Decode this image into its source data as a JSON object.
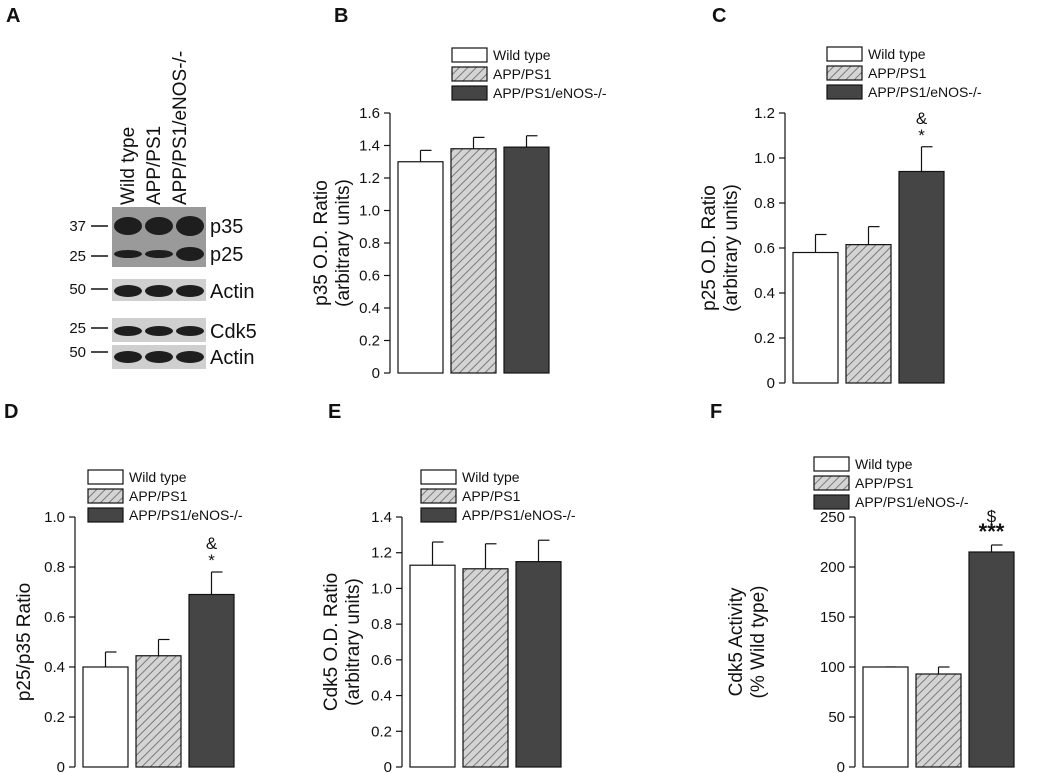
{
  "blot": {
    "panel_label": "A",
    "lanes": [
      "Wild type",
      "APP/PS1",
      "APP/PS1/eNOS-/-"
    ],
    "bands": [
      "p35",
      "p25",
      "Actin",
      "Cdk5",
      "Actin"
    ],
    "markers": [
      37,
      25,
      50,
      25,
      50
    ]
  },
  "chart_data": [
    {
      "type": "bar",
      "panel_label": "B",
      "ylabel": [
        "p35  O.D. Ratio",
        "(arbitrary units)"
      ],
      "ylim": [
        0,
        1.6
      ],
      "yticks": [
        0,
        0.2,
        0.4,
        0.6,
        0.8,
        {
          "value": 1,
          "label": "1.0"
        },
        1.2,
        1.4,
        1.6
      ],
      "series": [
        {
          "name": "Wild type",
          "color": "#ffffff",
          "values": [
            1.3
          ],
          "errors": [
            0.07
          ]
        },
        {
          "name": "APP/PS1",
          "color": "#bdbdbd",
          "hatch": true,
          "values": [
            1.38
          ],
          "errors": [
            0.07
          ]
        },
        {
          "name": "APP/PS1/eNOS-/-",
          "color": "#454545",
          "values": [
            1.39
          ],
          "errors": [
            0.07
          ]
        }
      ]
    },
    {
      "type": "bar",
      "panel_label": "C",
      "ylabel": [
        "p25  O.D. Ratio",
        "(arbitrary units)"
      ],
      "ylim": [
        0,
        1.2
      ],
      "yticks": [
        0,
        0.2,
        0.4,
        0.6,
        0.8,
        {
          "value": 1,
          "label": "1.0"
        },
        1.2
      ],
      "series": [
        {
          "name": "Wild type",
          "color": "#ffffff",
          "values": [
            0.58
          ],
          "errors": [
            0.08
          ]
        },
        {
          "name": "APP/PS1",
          "color": "#bdbdbd",
          "hatch": true,
          "values": [
            0.615
          ],
          "errors": [
            0.08
          ]
        },
        {
          "name": "APP/PS1/eNOS-/-",
          "color": "#454545",
          "values": [
            0.94
          ],
          "errors": [
            0.11
          ],
          "annotation": [
            "&",
            "*"
          ]
        }
      ]
    },
    {
      "type": "bar",
      "panel_label": "D",
      "ylabel": [
        "p25/p35 Ratio"
      ],
      "ylim": [
        0,
        1
      ],
      "yticks": [
        0,
        0.2,
        0.4,
        0.6,
        0.8,
        {
          "value": 1,
          "label": "1.0"
        }
      ],
      "series": [
        {
          "name": "Wild type",
          "color": "#ffffff",
          "values": [
            0.4
          ],
          "errors": [
            0.06
          ]
        },
        {
          "name": "APP/PS1",
          "color": "#bdbdbd",
          "hatch": true,
          "values": [
            0.445
          ],
          "errors": [
            0.065
          ]
        },
        {
          "name": "APP/PS1/eNOS-/-",
          "color": "#454545",
          "values": [
            0.69
          ],
          "errors": [
            0.09
          ],
          "annotation": [
            "&",
            "*"
          ]
        }
      ]
    },
    {
      "type": "bar",
      "panel_label": "E",
      "ylabel": [
        "Cdk5  O.D. Ratio",
        "(arbitrary units)"
      ],
      "ylim": [
        0,
        1.4
      ],
      "yticks": [
        0,
        0.2,
        0.4,
        0.6,
        0.8,
        {
          "value": 1,
          "label": "1.0"
        },
        1.2,
        1.4
      ],
      "series": [
        {
          "name": "Wild type",
          "color": "#ffffff",
          "values": [
            1.13
          ],
          "errors": [
            0.13
          ]
        },
        {
          "name": "APP/PS1",
          "color": "#bdbdbd",
          "hatch": true,
          "values": [
            1.11
          ],
          "errors": [
            0.14
          ]
        },
        {
          "name": "APP/PS1/eNOS-/-",
          "color": "#454545",
          "values": [
            1.15
          ],
          "errors": [
            0.12
          ]
        }
      ]
    },
    {
      "type": "bar",
      "panel_label": "F",
      "ylabel": [
        "Cdk5 Activity",
        "(% Wild type)"
      ],
      "ylim": [
        0,
        250
      ],
      "yticks": [
        0,
        50,
        100,
        150,
        200,
        250
      ],
      "series": [
        {
          "name": "Wild type",
          "color": "#ffffff",
          "values": [
            100
          ],
          "errors": [
            0
          ]
        },
        {
          "name": "APP/PS1",
          "color": "#bdbdbd",
          "hatch": true,
          "values": [
            93
          ],
          "errors": [
            7
          ]
        },
        {
          "name": "APP/PS1/eNOS-/-",
          "color": "#454545",
          "values": [
            215
          ],
          "errors": [
            7
          ],
          "annotation": [
            "$",
            "***"
          ]
        }
      ]
    }
  ]
}
